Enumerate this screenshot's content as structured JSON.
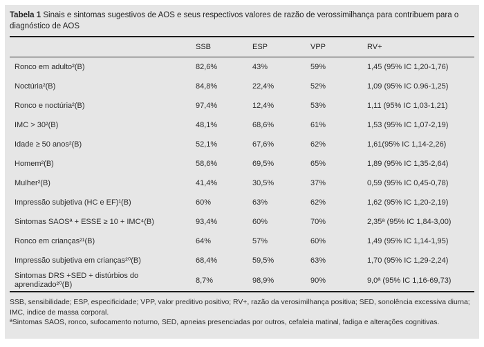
{
  "caption": {
    "label": "Tabela 1",
    "text": "Sinais e sintomas sugestivos de AOS e seus respectivos valores de razão de verossimilhança para contribuem para o diagnóstico de AOS"
  },
  "columns": [
    "SSB",
    "ESP",
    "VPP",
    "RV+"
  ],
  "rows": [
    {
      "label": "Ronco em adulto²(B)",
      "ssb": "82,6%",
      "esp": "43%",
      "vpp": "59%",
      "rv": "1,45 (95% IC 1,20-1,76)"
    },
    {
      "label": "Noctúria²(B)",
      "ssb": "84,8%",
      "esp": "22,4%",
      "vpp": "52%",
      "rv": "1,09 (95% IC 0.96-1,25)"
    },
    {
      "label": "Ronco e noctúria²(B)",
      "ssb": "97,4%",
      "esp": "12,4%",
      "vpp": "53%",
      "rv": "1,11 (95% IC 1,03-1,21)"
    },
    {
      "label": "IMC > 30²(B)",
      "ssb": "48,1%",
      "esp": "68,6%",
      "vpp": "61%",
      "rv": "1,53 (95% IC 1,07-2,19)"
    },
    {
      "label": "Idade ≥ 50 anos²(B)",
      "ssb": "52,1%",
      "esp": "67,6%",
      "vpp": "62%",
      "rv": "1,61(95% IC 1,14-2,26)"
    },
    {
      "label": "Homem²(B)",
      "ssb": "58,6%",
      "esp": "69,5%",
      "vpp": "65%",
      "rv": "1,89 (95% IC 1,35-2,64)"
    },
    {
      "label": "Mulher²(B)",
      "ssb": "41,4%",
      "esp": "30,5%",
      "vpp": "37%",
      "rv": "0,59 (95% IC 0,45-0,78)"
    },
    {
      "label": "Impressão subjetiva (HC e EF)¹(B)",
      "ssb": "60%",
      "esp": "63%",
      "vpp": "62%",
      "rv": "1,62 (95% IC 1,20-2,19)"
    },
    {
      "label": "Sintomas SAOSª + ESSE ≥ 10 + IMC⁴(B)",
      "ssb": "93,4%",
      "esp": "60%",
      "vpp": "70%",
      "rv": "2,35ª (95% IC 1,84-3,00)"
    },
    {
      "label": "Ronco em crianças²¹(B)",
      "ssb": "64%",
      "esp": "57%",
      "vpp": "60%",
      "rv": "1,49 (95% IC 1,14-1,95)"
    },
    {
      "label": "Impressão subjetiva em crianças²⁰(B)",
      "ssb": "68,4%",
      "esp": "59,5%",
      "vpp": "63%",
      "rv": "1,70 (95% IC 1,29-2,24)"
    },
    {
      "label": "Sintomas DRS +SED + distúrbios do aprendizado²⁰(B)",
      "ssb": "8,7%",
      "esp": "98,9%",
      "vpp": "90%",
      "rv": "9,0ª (95% IC 1,16-69,73)"
    }
  ],
  "footnotes": [
    "SSB, sensibilidade; ESP, especificidade; VPP, valor preditivo positivo; RV+, razão da verosimilhança positiva; SED, sonolência excessiva diurna; IMC, indice de massa corporal.",
    "ªSintomas SAOS, ronco, sufocamento noturno, SED, apneias presenciadas por outros, cefaleia matinal, fadiga e alterações cognitivas."
  ],
  "colors": {
    "panel_bg": "#e6e6e6",
    "text": "#2b2b2b",
    "rule": "#1c1c1c"
  }
}
